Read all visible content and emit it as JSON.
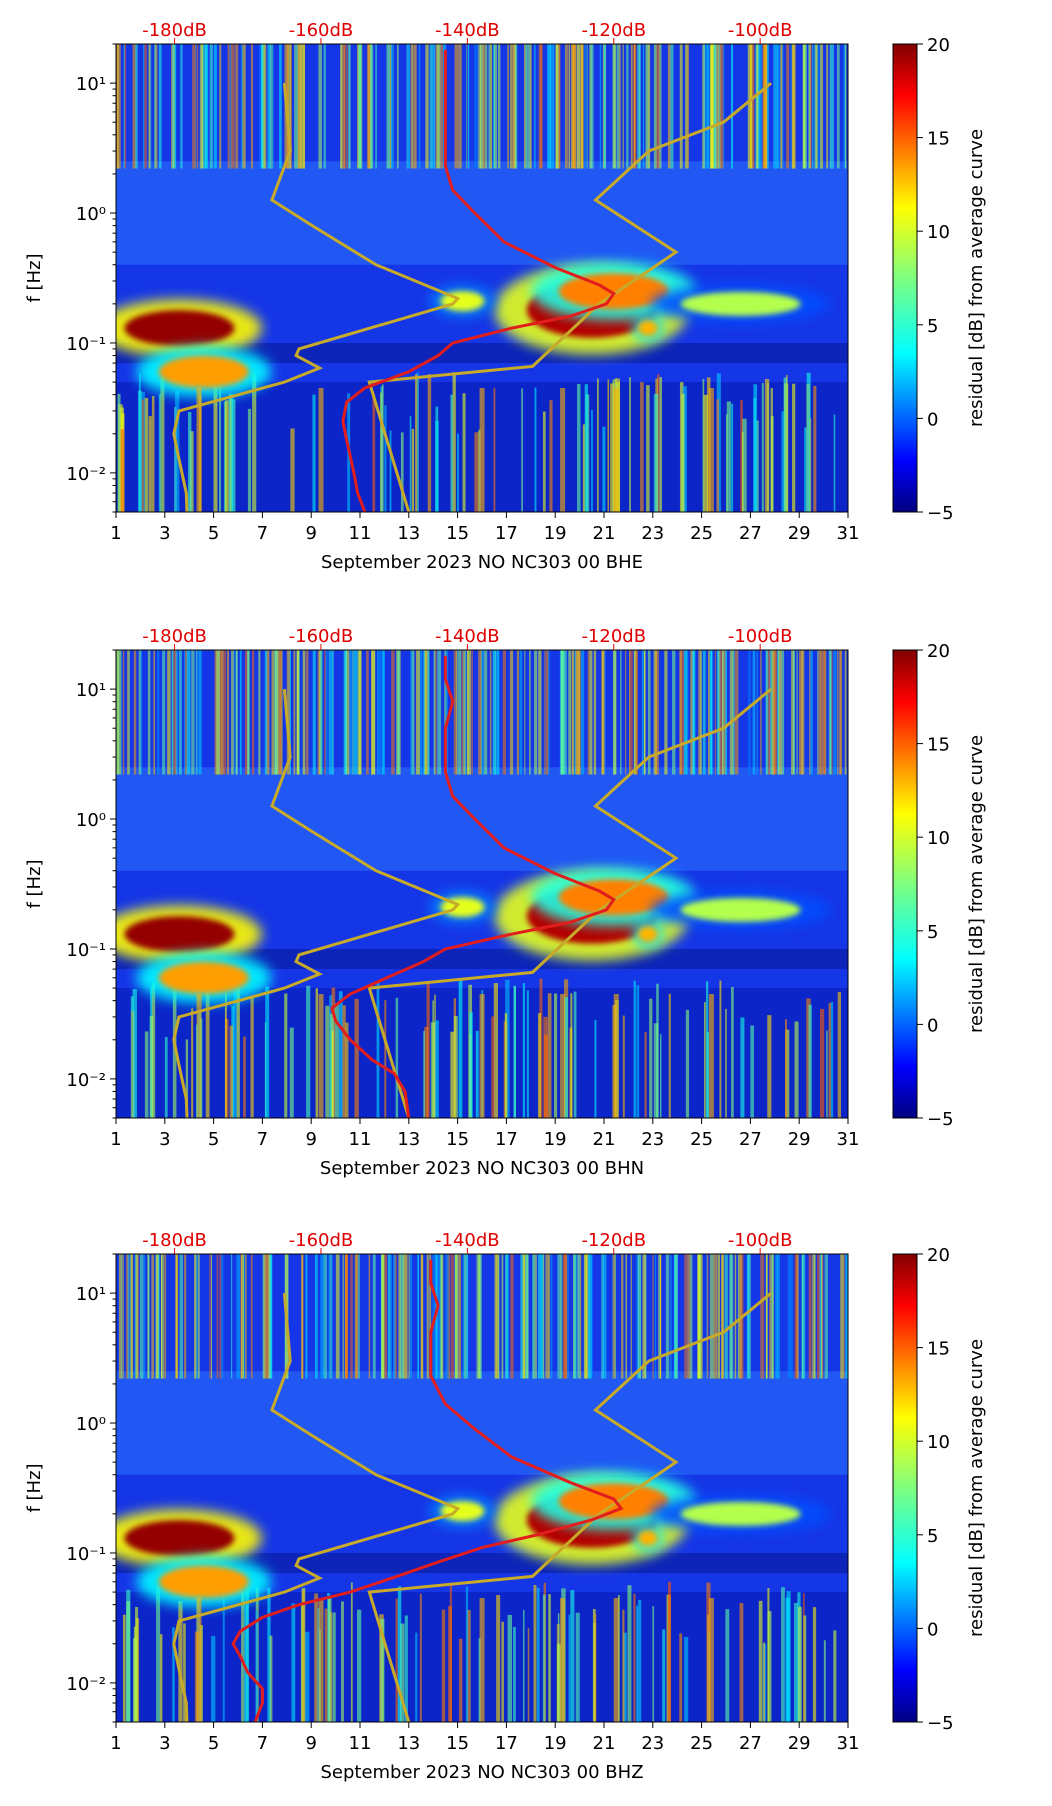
{
  "chart_data": [
    {
      "type": "heatmap",
      "xlabel": "September 2023 NO NC303 00 BHE",
      "ylabel": "f [Hz]",
      "x_ticks": [
        "1",
        "3",
        "5",
        "7",
        "9",
        "11",
        "13",
        "15",
        "17",
        "19",
        "21",
        "23",
        "25",
        "27",
        "29",
        "31"
      ],
      "y_ticks": [
        {
          "label": "10⁻²",
          "value": 0.01
        },
        {
          "label": "10⁻¹",
          "value": 0.1
        },
        {
          "label": "10⁰",
          "value": 1
        },
        {
          "label": "10¹",
          "value": 10
        }
      ],
      "top_ticks": [
        "-180dB",
        "-160dB",
        "-140dB",
        "-120dB",
        "-100dB"
      ],
      "top_values": [
        -180,
        -160,
        -140,
        -120,
        -100
      ],
      "xlim": [
        1,
        31
      ],
      "ylim_hz": [
        0.005,
        20
      ],
      "dblim": [
        -188,
        -88
      ],
      "colorbar": {
        "label": "residual [dB] from average curve",
        "ticks": [
          "20",
          "15",
          "10",
          "5",
          "0",
          "−5"
        ],
        "tick_values": [
          20,
          15,
          10,
          5,
          0,
          -5
        ],
        "range": [
          -5,
          20
        ]
      },
      "noise_model_curve_db": [
        [
          -178.3,
          0.005
        ],
        [
          -178.4,
          0.007
        ],
        [
          -179.3,
          0.012
        ],
        [
          -180.1,
          0.02
        ],
        [
          -179.4,
          0.03
        ],
        [
          -165,
          0.05
        ],
        [
          -160.2,
          0.064
        ],
        [
          -163.4,
          0.08
        ],
        [
          -163,
          0.09
        ],
        [
          -142,
          0.2
        ],
        [
          -141.3,
          0.22
        ],
        [
          -152.5,
          0.4
        ],
        [
          -161.2,
          0.8
        ],
        [
          -166.7,
          1.26
        ],
        [
          -164.2,
          3
        ],
        [
          -165,
          10
        ]
      ],
      "noise_model_curve_high_db": [
        [
          -148,
          0.005
        ],
        [
          -153.4,
          0.05
        ],
        [
          -131.1,
          0.066
        ],
        [
          -122,
          0.2
        ],
        [
          -119.4,
          0.25
        ],
        [
          -111.5,
          0.5
        ],
        [
          -122.5,
          1.26
        ],
        [
          -115.2,
          3
        ],
        [
          -105,
          5
        ],
        [
          -98.5,
          10
        ]
      ],
      "median_curve_db": [
        [
          -154,
          0.005
        ],
        [
          -155,
          0.007
        ],
        [
          -155.5,
          0.01
        ],
        [
          -156.5,
          0.018
        ],
        [
          -157,
          0.025
        ],
        [
          -156.5,
          0.035
        ],
        [
          -154,
          0.045
        ],
        [
          -148,
          0.06
        ],
        [
          -144,
          0.08
        ],
        [
          -142,
          0.1
        ],
        [
          -134,
          0.13
        ],
        [
          -126,
          0.16
        ],
        [
          -121,
          0.2
        ],
        [
          -120,
          0.24
        ],
        [
          -122,
          0.28
        ],
        [
          -128,
          0.38
        ],
        [
          -135,
          0.6
        ],
        [
          -139,
          1
        ],
        [
          -142,
          1.5
        ],
        [
          -143,
          2.3
        ],
        [
          -143,
          5
        ],
        [
          -143,
          8
        ],
        [
          -143,
          12
        ],
        [
          -143,
          18
        ]
      ],
      "event_days": [
        3.6,
        4.6,
        20.5,
        21.4,
        15.2,
        22.8,
        26.6
      ]
    },
    {
      "type": "heatmap",
      "xlabel": "September 2023 NO NC303 00 BHN",
      "ylabel": "f [Hz]",
      "x_ticks": [
        "1",
        "3",
        "5",
        "7",
        "9",
        "11",
        "13",
        "15",
        "17",
        "19",
        "21",
        "23",
        "25",
        "27",
        "29",
        "31"
      ],
      "y_ticks": [
        {
          "label": "10⁻²",
          "value": 0.01
        },
        {
          "label": "10⁻¹",
          "value": 0.1
        },
        {
          "label": "10⁰",
          "value": 1
        },
        {
          "label": "10¹",
          "value": 10
        }
      ],
      "top_ticks": [
        "-180dB",
        "-160dB",
        "-140dB",
        "-120dB",
        "-100dB"
      ],
      "top_values": [
        -180,
        -160,
        -140,
        -120,
        -100
      ],
      "xlim": [
        1,
        31
      ],
      "ylim_hz": [
        0.005,
        20
      ],
      "dblim": [
        -188,
        -88
      ],
      "colorbar": {
        "label": "residual [dB] from average curve",
        "ticks": [
          "20",
          "15",
          "10",
          "5",
          "0",
          "−5"
        ],
        "tick_values": [
          20,
          15,
          10,
          5,
          0,
          -5
        ],
        "range": [
          -5,
          20
        ]
      },
      "noise_model_curve_db": [
        [
          -178.3,
          0.005
        ],
        [
          -178.4,
          0.007
        ],
        [
          -179.3,
          0.012
        ],
        [
          -180.1,
          0.02
        ],
        [
          -179.4,
          0.03
        ],
        [
          -165,
          0.05
        ],
        [
          -160.2,
          0.064
        ],
        [
          -163.4,
          0.08
        ],
        [
          -163,
          0.09
        ],
        [
          -142,
          0.2
        ],
        [
          -141.3,
          0.22
        ],
        [
          -152.5,
          0.4
        ],
        [
          -161.2,
          0.8
        ],
        [
          -166.7,
          1.26
        ],
        [
          -164.2,
          3
        ],
        [
          -165,
          10
        ]
      ],
      "noise_model_curve_high_db": [
        [
          -148,
          0.005
        ],
        [
          -153.4,
          0.05
        ],
        [
          -131.1,
          0.066
        ],
        [
          -122,
          0.2
        ],
        [
          -119.4,
          0.25
        ],
        [
          -111.5,
          0.5
        ],
        [
          -122.5,
          1.26
        ],
        [
          -115.2,
          3
        ],
        [
          -105,
          5
        ],
        [
          -98.5,
          10
        ]
      ],
      "median_curve_db": [
        [
          -148,
          0.005
        ],
        [
          -148.5,
          0.008
        ],
        [
          -150,
          0.011
        ],
        [
          -153,
          0.014
        ],
        [
          -156,
          0.02
        ],
        [
          -158,
          0.028
        ],
        [
          -158.5,
          0.035
        ],
        [
          -156,
          0.045
        ],
        [
          -151,
          0.06
        ],
        [
          -146,
          0.08
        ],
        [
          -143,
          0.1
        ],
        [
          -134,
          0.13
        ],
        [
          -126,
          0.16
        ],
        [
          -121,
          0.2
        ],
        [
          -120,
          0.24
        ],
        [
          -122,
          0.28
        ],
        [
          -128,
          0.38
        ],
        [
          -135,
          0.6
        ],
        [
          -139,
          1
        ],
        [
          -142,
          1.5
        ],
        [
          -143,
          2.3
        ],
        [
          -143,
          5
        ],
        [
          -142,
          8
        ],
        [
          -143,
          12
        ],
        [
          -143,
          18
        ]
      ],
      "event_days": [
        3.6,
        4.6,
        20.5,
        21.4,
        15.2,
        22.8,
        26.6
      ]
    },
    {
      "type": "heatmap",
      "xlabel": "September 2023 NO NC303 00 BHZ",
      "ylabel": "f [Hz]",
      "x_ticks": [
        "1",
        "3",
        "5",
        "7",
        "9",
        "11",
        "13",
        "15",
        "17",
        "19",
        "21",
        "23",
        "25",
        "27",
        "29",
        "31"
      ],
      "y_ticks": [
        {
          "label": "10⁻²",
          "value": 0.01
        },
        {
          "label": "10⁻¹",
          "value": 0.1
        },
        {
          "label": "10⁰",
          "value": 1
        },
        {
          "label": "10¹",
          "value": 10
        }
      ],
      "top_ticks": [
        "-180dB",
        "-160dB",
        "-140dB",
        "-120dB",
        "-100dB"
      ],
      "top_values": [
        -180,
        -160,
        -140,
        -120,
        -100
      ],
      "xlim": [
        1,
        31
      ],
      "ylim_hz": [
        0.005,
        20
      ],
      "dblim": [
        -188,
        -88
      ],
      "colorbar": {
        "label": "residual [dB] from average curve",
        "ticks": [
          "20",
          "15",
          "10",
          "5",
          "0",
          "−5"
        ],
        "tick_values": [
          20,
          15,
          10,
          5,
          0,
          -5
        ],
        "range": [
          -5,
          20
        ]
      },
      "noise_model_curve_db": [
        [
          -178.3,
          0.005
        ],
        [
          -178.4,
          0.007
        ],
        [
          -179.3,
          0.012
        ],
        [
          -180.1,
          0.02
        ],
        [
          -179.4,
          0.03
        ],
        [
          -165,
          0.05
        ],
        [
          -160.2,
          0.064
        ],
        [
          -163.4,
          0.08
        ],
        [
          -163,
          0.09
        ],
        [
          -142,
          0.2
        ],
        [
          -141.3,
          0.22
        ],
        [
          -152.5,
          0.4
        ],
        [
          -161.2,
          0.8
        ],
        [
          -166.7,
          1.26
        ],
        [
          -164.2,
          3
        ],
        [
          -165,
          10
        ]
      ],
      "noise_model_curve_high_db": [
        [
          -148,
          0.005
        ],
        [
          -153.4,
          0.05
        ],
        [
          -131.1,
          0.066
        ],
        [
          -122,
          0.2
        ],
        [
          -119.4,
          0.25
        ],
        [
          -111.5,
          0.5
        ],
        [
          -122.5,
          1.26
        ],
        [
          -115.2,
          3
        ],
        [
          -105,
          5
        ],
        [
          -98.5,
          10
        ]
      ],
      "median_curve_db": [
        [
          -169,
          0.005
        ],
        [
          -168,
          0.007
        ],
        [
          -168,
          0.009
        ],
        [
          -170,
          0.012
        ],
        [
          -171,
          0.016
        ],
        [
          -172,
          0.02
        ],
        [
          -171,
          0.025
        ],
        [
          -168,
          0.032
        ],
        [
          -163,
          0.04
        ],
        [
          -156,
          0.05
        ],
        [
          -150,
          0.065
        ],
        [
          -144,
          0.085
        ],
        [
          -138,
          0.11
        ],
        [
          -130,
          0.14
        ],
        [
          -123,
          0.18
        ],
        [
          -119,
          0.22
        ],
        [
          -120,
          0.26
        ],
        [
          -126,
          0.35
        ],
        [
          -134,
          0.55
        ],
        [
          -139,
          0.9
        ],
        [
          -143,
          1.4
        ],
        [
          -145,
          2.3
        ],
        [
          -145,
          5
        ],
        [
          -144,
          8
        ],
        [
          -145,
          12
        ],
        [
          -145,
          18
        ]
      ],
      "event_days": [
        3.6,
        4.6,
        20.5,
        21.4,
        15.2,
        22.8,
        26.6
      ]
    }
  ],
  "style": {
    "curve_noise_model": "#c8aa2a",
    "curve_median": "#e11d1d",
    "top_tick_text": "#e00000",
    "axis_color": "#000000"
  }
}
